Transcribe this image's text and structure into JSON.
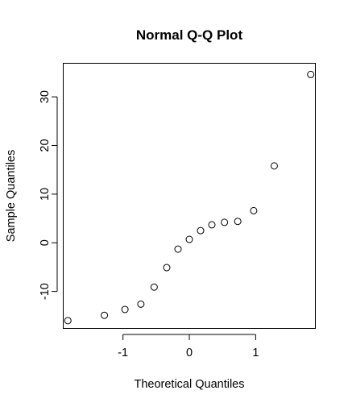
{
  "chart_data": {
    "type": "scatter",
    "title": "Normal Q-Q Plot",
    "xlabel": "Theoretical Quantiles",
    "ylabel": "Sample Quantiles",
    "xlim": [
      -1.9,
      1.9
    ],
    "ylim": [
      -17.6,
      36.9
    ],
    "x_ticks": [
      -1,
      0,
      1
    ],
    "x_tick_labels": [
      "-1",
      "0",
      "1"
    ],
    "y_ticks": [
      -10,
      0,
      10,
      20,
      30
    ],
    "y_tick_labels": [
      "-10",
      "0",
      "10",
      "20",
      "30"
    ],
    "grid": false,
    "legend": "none",
    "marker": "open-circle",
    "series": [
      {
        "x": [
          -1.83,
          -1.28,
          -0.97,
          -0.73,
          -0.53,
          -0.34,
          -0.17,
          0.0,
          0.17,
          0.34,
          0.53,
          0.73,
          0.97,
          1.28,
          1.83
        ],
        "y": [
          -16.0,
          -14.9,
          -13.7,
          -12.6,
          -9.1,
          -5.1,
          -1.3,
          0.7,
          2.5,
          3.7,
          4.2,
          4.4,
          6.6,
          15.8,
          34.6
        ]
      }
    ]
  }
}
